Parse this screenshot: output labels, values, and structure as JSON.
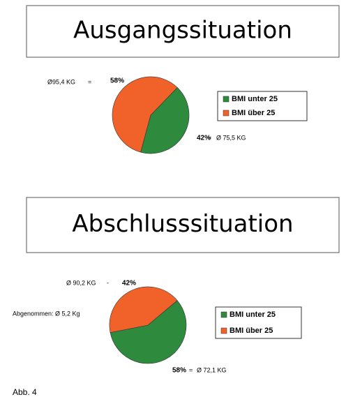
{
  "chart_data": [
    {
      "type": "pie",
      "title": "Ausgangssituation",
      "categories": [
        "BMI unter 25",
        "BMI über 25"
      ],
      "values": [
        42,
        58
      ],
      "value_labels": [
        "42%",
        "58%"
      ],
      "colors": [
        "#2e8b3e",
        "#f0622a"
      ],
      "annotations": [
        "Ø95,4 KG",
        "=",
        "=",
        "Ø 75,5 KG"
      ]
    },
    {
      "type": "pie",
      "title": "Abschlusssituation",
      "categories": [
        "BMI unter 25",
        "BMI über 25"
      ],
      "values": [
        58,
        42
      ],
      "value_labels": [
        "58%",
        "42%"
      ],
      "colors": [
        "#2e8b3e",
        "#f0622a"
      ],
      "annotations": [
        "Ø 90,2 KG",
        "-",
        "Abgenommen: Ø 5,2 Kg",
        "=",
        "Ø 72,1 KG"
      ]
    }
  ],
  "caption": "Abb. 4"
}
